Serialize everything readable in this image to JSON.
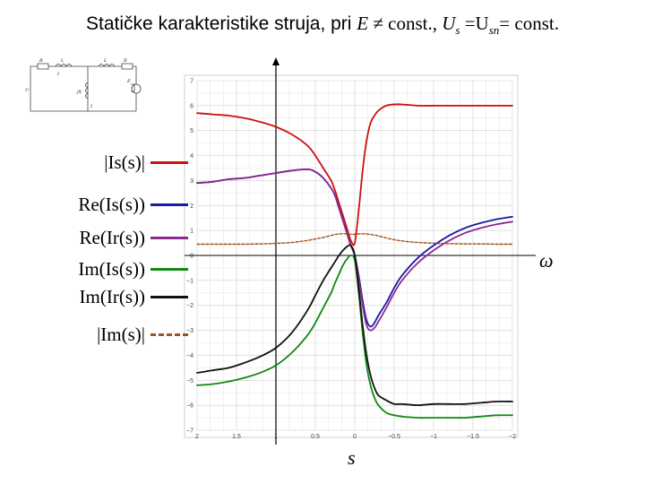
{
  "header": {
    "title_prefix": "Statičke karakteristike struja, pri ",
    "title_E": "E",
    "title_neq_const": " ≠ const., ",
    "title_U": "U",
    "title_U_sub": "s",
    "title_eq": " =U",
    "title_Usn_sub": "sn",
    "title_suffix": "= const."
  },
  "circuit": {
    "labels": [
      "R",
      "L",
      "L",
      "R",
      "U",
      "I",
      "jX",
      "E",
      "I"
    ]
  },
  "legend": [
    {
      "label": "|Is(s)|",
      "color": "#cc1111",
      "dash": false
    },
    {
      "label": "Re(Is(s))",
      "color": "#1a1aa8",
      "dash": false
    },
    {
      "label": "Re(Ir(s))",
      "color": "#8a2a8a",
      "dash": false
    },
    {
      "label": "Im(Is(s))",
      "color": "#118811",
      "dash": false
    },
    {
      "label": "Im(Ir(s))",
      "color": "#111111",
      "dash": false
    },
    {
      "label": "|Im(s)|",
      "color": "#a0521e",
      "dash": true
    }
  ],
  "axes": {
    "omega_label": "ω",
    "s_label": "s"
  },
  "chart_data": {
    "type": "line",
    "xlim": [
      2,
      -2
    ],
    "ylim": [
      -7,
      7
    ],
    "x_ticks": [
      "2",
      "1.5",
      "1",
      "0.5",
      "0",
      "−0.5",
      "−1",
      "−1.5",
      "−2"
    ],
    "x_tick_values": [
      2,
      1.5,
      1,
      0.5,
      0,
      -0.5,
      -1,
      -1.5,
      -2
    ],
    "y_ticks": [
      "7",
      "6",
      "5",
      "4",
      "3",
      "2",
      "1",
      "0",
      "−1",
      "−2",
      "−3",
      "−4",
      "−5",
      "−6",
      "−7"
    ],
    "y_tick_values": [
      7,
      6,
      5,
      4,
      3,
      2,
      1,
      0,
      -1,
      -2,
      -3,
      -4,
      -5,
      -6,
      -7
    ],
    "grid": true,
    "x": [
      2.0,
      1.8,
      1.6,
      1.4,
      1.2,
      1.0,
      0.8,
      0.6,
      0.5,
      0.4,
      0.3,
      0.25,
      0.2,
      0.15,
      0.1,
      0.05,
      0.0,
      -0.05,
      -0.1,
      -0.15,
      -0.2,
      -0.25,
      -0.3,
      -0.4,
      -0.5,
      -0.6,
      -0.8,
      -1.0,
      -1.2,
      -1.4,
      -1.6,
      -1.8,
      -2.0
    ],
    "series": [
      {
        "name": "|Is(s)|",
        "values": [
          5.7,
          5.65,
          5.6,
          5.5,
          5.35,
          5.15,
          4.85,
          4.4,
          4.0,
          3.5,
          3.0,
          2.6,
          2.1,
          1.6,
          1.1,
          0.6,
          0.5,
          1.8,
          3.4,
          4.6,
          5.3,
          5.6,
          5.8,
          6.0,
          6.05,
          6.05,
          6.0,
          6.0,
          6.0,
          6.0,
          6.0,
          6.0,
          6.0
        ]
      },
      {
        "name": "Re(Is(s))",
        "values": [
          2.9,
          2.95,
          3.05,
          3.1,
          3.2,
          3.3,
          3.4,
          3.45,
          3.35,
          3.1,
          2.7,
          2.4,
          1.9,
          1.4,
          0.9,
          0.4,
          0.0,
          -0.8,
          -1.8,
          -2.6,
          -2.85,
          -2.7,
          -2.4,
          -1.9,
          -1.3,
          -0.8,
          -0.1,
          0.4,
          0.8,
          1.1,
          1.3,
          1.45,
          1.55
        ]
      },
      {
        "name": "Re(Ir(s))",
        "values": [
          2.9,
          2.95,
          3.05,
          3.1,
          3.2,
          3.3,
          3.4,
          3.45,
          3.35,
          3.1,
          2.7,
          2.4,
          1.9,
          1.4,
          0.9,
          0.4,
          0.0,
          -0.9,
          -2.0,
          -2.8,
          -3.0,
          -2.9,
          -2.65,
          -2.1,
          -1.5,
          -1.0,
          -0.3,
          0.2,
          0.6,
          0.9,
          1.1,
          1.25,
          1.35
        ]
      },
      {
        "name": "Im(Is(s))",
        "values": [
          -5.2,
          -5.15,
          -5.05,
          -4.9,
          -4.7,
          -4.4,
          -3.9,
          -3.2,
          -2.7,
          -2.1,
          -1.5,
          -1.1,
          -0.75,
          -0.4,
          -0.15,
          0.0,
          -0.2,
          -1.5,
          -3.1,
          -4.4,
          -5.2,
          -5.7,
          -6.0,
          -6.3,
          -6.4,
          -6.45,
          -6.5,
          -6.5,
          -6.5,
          -6.5,
          -6.45,
          -6.4,
          -6.4
        ]
      },
      {
        "name": "Im(Ir(s))",
        "values": [
          -4.7,
          -4.6,
          -4.5,
          -4.3,
          -4.05,
          -3.7,
          -3.1,
          -2.2,
          -1.6,
          -1.0,
          -0.5,
          -0.25,
          0.0,
          0.2,
          0.35,
          0.4,
          0.0,
          -1.3,
          -2.8,
          -4.0,
          -4.8,
          -5.3,
          -5.6,
          -5.8,
          -5.95,
          -5.95,
          -6.0,
          -5.95,
          -5.95,
          -5.95,
          -5.9,
          -5.85,
          -5.85
        ]
      },
      {
        "name": "|Im(s)|",
        "dash": true,
        "values": [
          0.45,
          0.45,
          0.45,
          0.45,
          0.46,
          0.48,
          0.52,
          0.6,
          0.66,
          0.72,
          0.8,
          0.84,
          0.86,
          0.87,
          0.86,
          0.85,
          0.85,
          0.86,
          0.87,
          0.86,
          0.84,
          0.82,
          0.78,
          0.7,
          0.63,
          0.58,
          0.52,
          0.49,
          0.47,
          0.46,
          0.46,
          0.45,
          0.45
        ]
      }
    ]
  }
}
